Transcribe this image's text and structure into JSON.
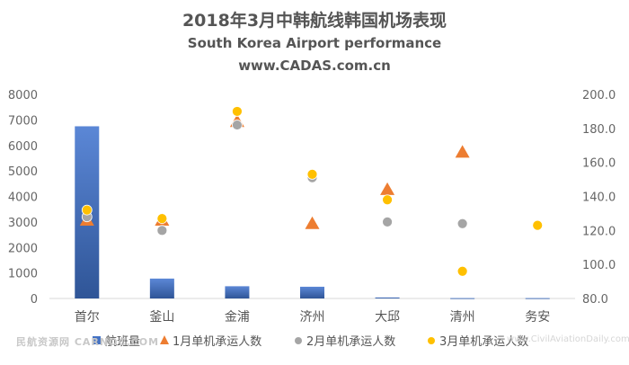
{
  "chart_data": {
    "type": "bar+scatter",
    "title": "2018年3月中韩航线韩国机场表现",
    "subtitle": "South Korea Airport performance",
    "source": "www.CADAS.com.cn",
    "categories": [
      "首尔",
      "釜山",
      "金浦",
      "济州",
      "大邱",
      "清州",
      "务安"
    ],
    "left_axis": {
      "ylim": [
        0,
        8000
      ],
      "ticks": [
        "0",
        "1000",
        "2000",
        "3000",
        "4000",
        "5000",
        "6000",
        "7000",
        "8000"
      ]
    },
    "right_axis": {
      "ylim": [
        80,
        200
      ],
      "ticks": [
        "80.0",
        "100.0",
        "120.0",
        "140.0",
        "160.0",
        "180.0",
        "200.0"
      ]
    },
    "series": [
      {
        "name": "航班量",
        "kind": "bar",
        "axis": "left",
        "color": "#4472C4",
        "values": [
          6750,
          780,
          480,
          460,
          40,
          15,
          15
        ]
      },
      {
        "name": "1月单机承运人数",
        "kind": "triangle",
        "axis": "right",
        "color": "#ED7D31",
        "values": [
          126,
          126,
          184,
          124,
          144,
          166,
          null
        ]
      },
      {
        "name": "2月单机承运人数",
        "kind": "dot",
        "axis": "right",
        "color": "#A5A5A5",
        "values": [
          128,
          120,
          182,
          151,
          125,
          124,
          null
        ]
      },
      {
        "name": "3月单机承运人数",
        "kind": "dot",
        "axis": "right",
        "color": "#FFC000",
        "values": [
          132,
          127,
          190,
          153,
          138,
          96,
          123
        ]
      }
    ],
    "legend_position": "bottom",
    "grid": false
  },
  "watermark": {
    "left": "民航资源网 CARNOC.COM",
    "right": "www.CivilAviationDaily.com"
  }
}
